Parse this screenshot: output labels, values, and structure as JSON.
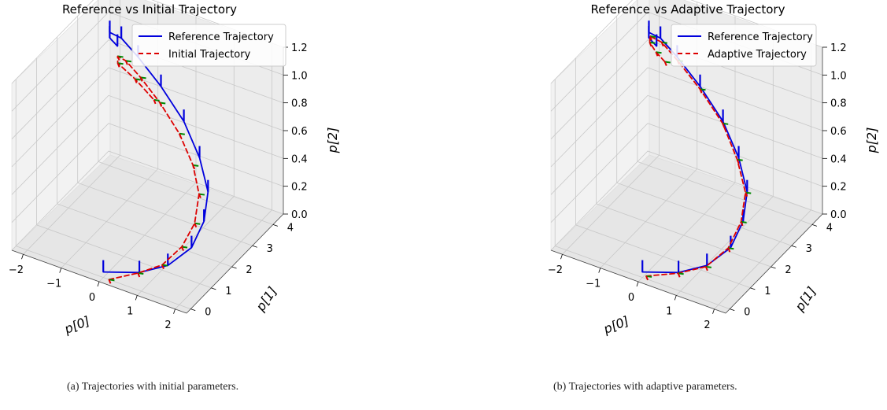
{
  "chart_data": [
    {
      "type": "line",
      "projection": "3d",
      "title": "Reference vs Initial Trajectory",
      "xlabel": "p[0]",
      "ylabel": "p[1]",
      "zlabel": "p[2]",
      "xticks": [
        "−2",
        "−1",
        "0",
        "1",
        "2"
      ],
      "yticks": [
        "0",
        "1",
        "2",
        "3",
        "4"
      ],
      "zticks": [
        "0.0",
        "0.2",
        "0.4",
        "0.6",
        "0.8",
        "1.0",
        "1.2"
      ],
      "xlim": [
        -2.3,
        2.3
      ],
      "ylim": [
        -0.2,
        4.5
      ],
      "zlim": [
        0.0,
        1.2
      ],
      "grid": true,
      "legend_position": "top-right",
      "series": [
        {
          "name": "Reference Trajectory",
          "color": "#0000dd",
          "style": "solid",
          "x": [
            0.0,
            0.82,
            1.45,
            1.89,
            2.0,
            1.89,
            1.45,
            0.82,
            0.0,
            -0.82,
            -1.45,
            -1.89,
            -2.0,
            -1.85
          ],
          "y": [
            0.0,
            0.24,
            0.46,
            0.8,
            1.2,
            1.6,
            2.0,
            2.4,
            2.8,
            3.2,
            3.55,
            3.8,
            4.0,
            4.1
          ],
          "z": [
            0.04,
            0.08,
            0.16,
            0.28,
            0.42,
            0.56,
            0.7,
            0.84,
            0.95,
            1.02,
            1.04,
            1.0,
            0.92,
            0.86
          ]
        },
        {
          "name": "Initial Trajectory",
          "color": "#dd0000",
          "style": "dashed",
          "x": [
            0.15,
            0.75,
            1.25,
            1.58,
            1.7,
            1.6,
            1.25,
            0.7,
            0.0,
            -0.7,
            -1.25,
            -1.6,
            -1.68,
            -1.25,
            -0.7
          ],
          "y": [
            0.0,
            0.3,
            0.55,
            0.9,
            1.3,
            1.7,
            2.05,
            2.4,
            2.75,
            3.1,
            3.4,
            3.65,
            3.8,
            3.85,
            3.75
          ],
          "z": [
            0.0,
            0.06,
            0.13,
            0.24,
            0.36,
            0.5,
            0.62,
            0.74,
            0.84,
            0.9,
            0.92,
            0.88,
            0.8,
            0.72,
            0.64
          ]
        }
      ]
    },
    {
      "type": "line",
      "projection": "3d",
      "title": "Reference vs Adaptive Trajectory",
      "xlabel": "p[0]",
      "ylabel": "p[1]",
      "zlabel": "p[2]",
      "xticks": [
        "−2",
        "−1",
        "0",
        "1",
        "2"
      ],
      "yticks": [
        "0",
        "1",
        "2",
        "3",
        "4"
      ],
      "zticks": [
        "0.0",
        "0.2",
        "0.4",
        "0.6",
        "0.8",
        "1.0",
        "1.2"
      ],
      "xlim": [
        -2.3,
        2.3
      ],
      "ylim": [
        -0.2,
        4.5
      ],
      "zlim": [
        0.0,
        1.2
      ],
      "grid": true,
      "legend_position": "top-right",
      "series": [
        {
          "name": "Reference Trajectory",
          "color": "#0000dd",
          "style": "solid",
          "x": [
            0.0,
            0.82,
            1.45,
            1.89,
            2.0,
            1.89,
            1.45,
            0.82,
            0.0,
            -0.82,
            -1.45,
            -1.89,
            -2.0,
            -1.85
          ],
          "y": [
            0.0,
            0.24,
            0.46,
            0.8,
            1.2,
            1.6,
            2.0,
            2.4,
            2.8,
            3.2,
            3.55,
            3.8,
            4.0,
            4.1
          ],
          "z": [
            0.04,
            0.08,
            0.16,
            0.28,
            0.42,
            0.56,
            0.7,
            0.84,
            0.95,
            1.02,
            1.04,
            1.0,
            0.92,
            0.86
          ]
        },
        {
          "name": "Adaptive Trajectory",
          "color": "#dd0000",
          "style": "dashed",
          "x": [
            0.1,
            0.8,
            1.4,
            1.8,
            1.92,
            1.82,
            1.4,
            0.8,
            0.0,
            -0.8,
            -1.4,
            -1.85,
            -1.95,
            -1.8,
            -1.55
          ],
          "y": [
            0.0,
            0.26,
            0.5,
            0.85,
            1.25,
            1.65,
            2.02,
            2.42,
            2.8,
            3.18,
            3.52,
            3.78,
            3.95,
            3.98,
            3.95
          ],
          "z": [
            0.02,
            0.07,
            0.14,
            0.26,
            0.4,
            0.54,
            0.68,
            0.82,
            0.93,
            1.0,
            1.02,
            0.98,
            0.9,
            0.84,
            0.8
          ]
        }
      ]
    }
  ],
  "captions": {
    "a": "(a) Trajectories with initial parameters.",
    "b": "(b) Trajectories with adaptive parameters."
  }
}
